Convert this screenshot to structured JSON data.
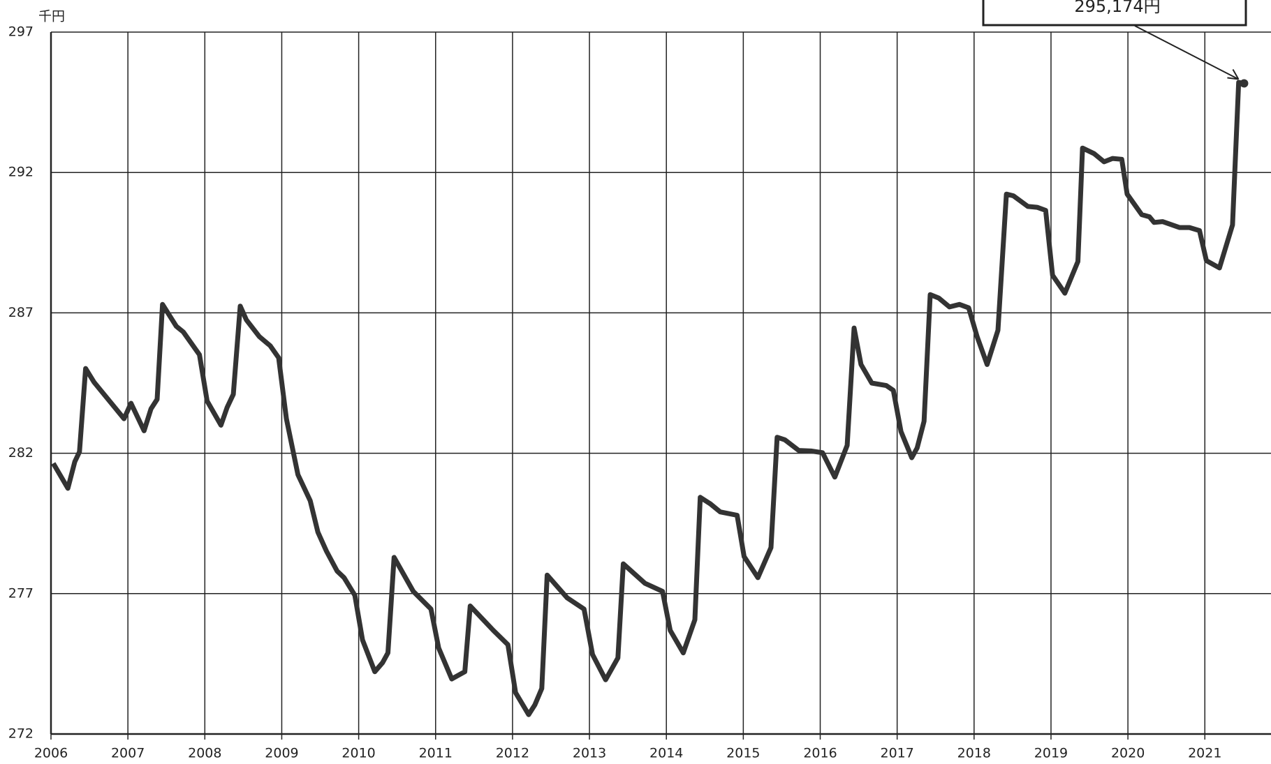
{
  "chart_data": {
    "type": "line",
    "y_unit_label": "千円",
    "annotation": "295,174円",
    "x": [
      2006.03,
      2006.22,
      2006.31,
      2006.37,
      2006.45,
      2006.56,
      2006.95,
      2007.04,
      2007.21,
      2007.3,
      2007.38,
      2007.45,
      2007.63,
      2007.72,
      2007.93,
      2008.03,
      2008.21,
      2008.29,
      2008.37,
      2008.46,
      2008.54,
      2008.71,
      2008.85,
      2008.96,
      2009.06,
      2009.21,
      2009.37,
      2009.47,
      2009.58,
      2009.72,
      2009.81,
      2009.95,
      2010.05,
      2010.21,
      2010.31,
      2010.38,
      2010.46,
      2010.71,
      2010.94,
      2011.04,
      2011.21,
      2011.38,
      2011.45,
      2011.75,
      2011.94,
      2012.04,
      2012.21,
      2012.29,
      2012.38,
      2012.45,
      2012.71,
      2012.93,
      2013.04,
      2013.21,
      2013.37,
      2013.44,
      2013.72,
      2013.95,
      2014.05,
      2014.22,
      2014.37,
      2014.44,
      2014.57,
      2014.7,
      2014.92,
      2015.01,
      2015.19,
      2015.36,
      2015.44,
      2015.54,
      2015.72,
      2015.88,
      2016.03,
      2016.19,
      2016.35,
      2016.44,
      2016.53,
      2016.67,
      2016.86,
      2016.95,
      2017.05,
      2017.19,
      2017.26,
      2017.35,
      2017.43,
      2017.54,
      2017.68,
      2017.81,
      2017.93,
      2018.04,
      2018.17,
      2018.31,
      2018.42,
      2018.51,
      2018.7,
      2018.82,
      2018.93,
      2019.02,
      2019.18,
      2019.35,
      2019.41,
      2019.56,
      2019.69,
      2019.8,
      2019.92,
      2019.99,
      2020.18,
      2020.28,
      2020.34,
      2020.45,
      2020.67,
      2020.8,
      2020.93,
      2021.02,
      2021.19,
      2021.36,
      2021.44,
      2021.51
    ],
    "series": [
      {
        "color": "#333333",
        "values": [
          281.64,
          280.75,
          281.7,
          282.05,
          285.02,
          284.53,
          283.23,
          283.78,
          282.8,
          283.58,
          283.92,
          287.3,
          286.52,
          286.32,
          285.51,
          283.86,
          283.0,
          283.63,
          284.1,
          287.24,
          286.75,
          286.15,
          285.83,
          285.4,
          283.23,
          281.24,
          280.31,
          279.19,
          278.52,
          277.8,
          277.57,
          276.94,
          275.35,
          274.22,
          274.54,
          274.89,
          278.29,
          277.08,
          276.45,
          275.06,
          273.96,
          274.22,
          276.56,
          275.69,
          275.18,
          273.47,
          272.69,
          273.04,
          273.62,
          277.66,
          276.85,
          276.45,
          274.83,
          273.93,
          274.71,
          278.06,
          277.37,
          277.08,
          275.69,
          274.89,
          276.07,
          280.43,
          280.2,
          279.91,
          279.79,
          278.32,
          277.57,
          278.64,
          282.57,
          282.48,
          282.1,
          282.08,
          282.02,
          281.15,
          282.28,
          286.46,
          285.16,
          284.5,
          284.41,
          284.24,
          282.77,
          281.84,
          282.19,
          283.14,
          287.65,
          287.53,
          287.21,
          287.3,
          287.18,
          286.15,
          285.16,
          286.38,
          291.23,
          291.17,
          290.79,
          290.76,
          290.65,
          288.34,
          287.7,
          288.83,
          292.87,
          292.67,
          292.38,
          292.5,
          292.47,
          291.23,
          290.5,
          290.42,
          290.22,
          290.25,
          290.04,
          290.04,
          289.93,
          288.86,
          288.6,
          290.13,
          295.21,
          295.174
        ]
      }
    ],
    "xlim": [
      2006,
      2021.86
    ],
    "xticks": [
      2006,
      2007,
      2008,
      2009,
      2010,
      2011,
      2012,
      2013,
      2014,
      2015,
      2016,
      2017,
      2018,
      2019,
      2020,
      2021
    ],
    "ylim": [
      272,
      297
    ],
    "yticks": [
      272,
      277,
      282,
      287,
      292,
      297
    ],
    "grid": true
  }
}
